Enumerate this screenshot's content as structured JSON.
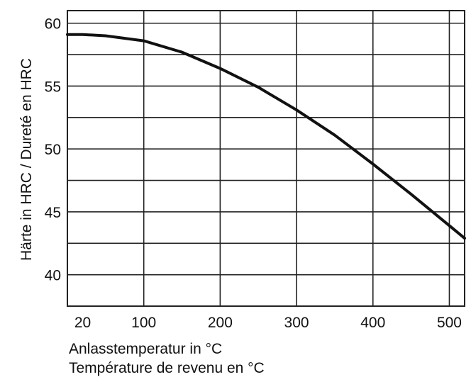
{
  "chart_data": {
    "type": "line",
    "title": "",
    "xlabel": [
      "Anlasstemperatur in °C",
      "Température de revenu en °C"
    ],
    "ylabel": "Härte in HRC / Dureté en HRC",
    "x_ticks": [
      20,
      100,
      200,
      300,
      400,
      500
    ],
    "y_ticks": [
      40,
      45,
      50,
      55,
      60
    ],
    "xlim": [
      0,
      520
    ],
    "ylim": [
      37.5,
      61
    ],
    "grid": true,
    "series": [
      {
        "x": [
          0,
          20,
          50,
          100,
          150,
          200,
          250,
          300,
          350,
          400,
          450,
          500,
          520
        ],
        "y": [
          59.1,
          59.1,
          59.0,
          58.6,
          57.7,
          56.4,
          54.9,
          53.1,
          51.1,
          48.8,
          46.4,
          43.9,
          42.9
        ]
      }
    ],
    "colors": {
      "line": "#111111",
      "grid": "#222222",
      "background": "#ffffff"
    }
  }
}
